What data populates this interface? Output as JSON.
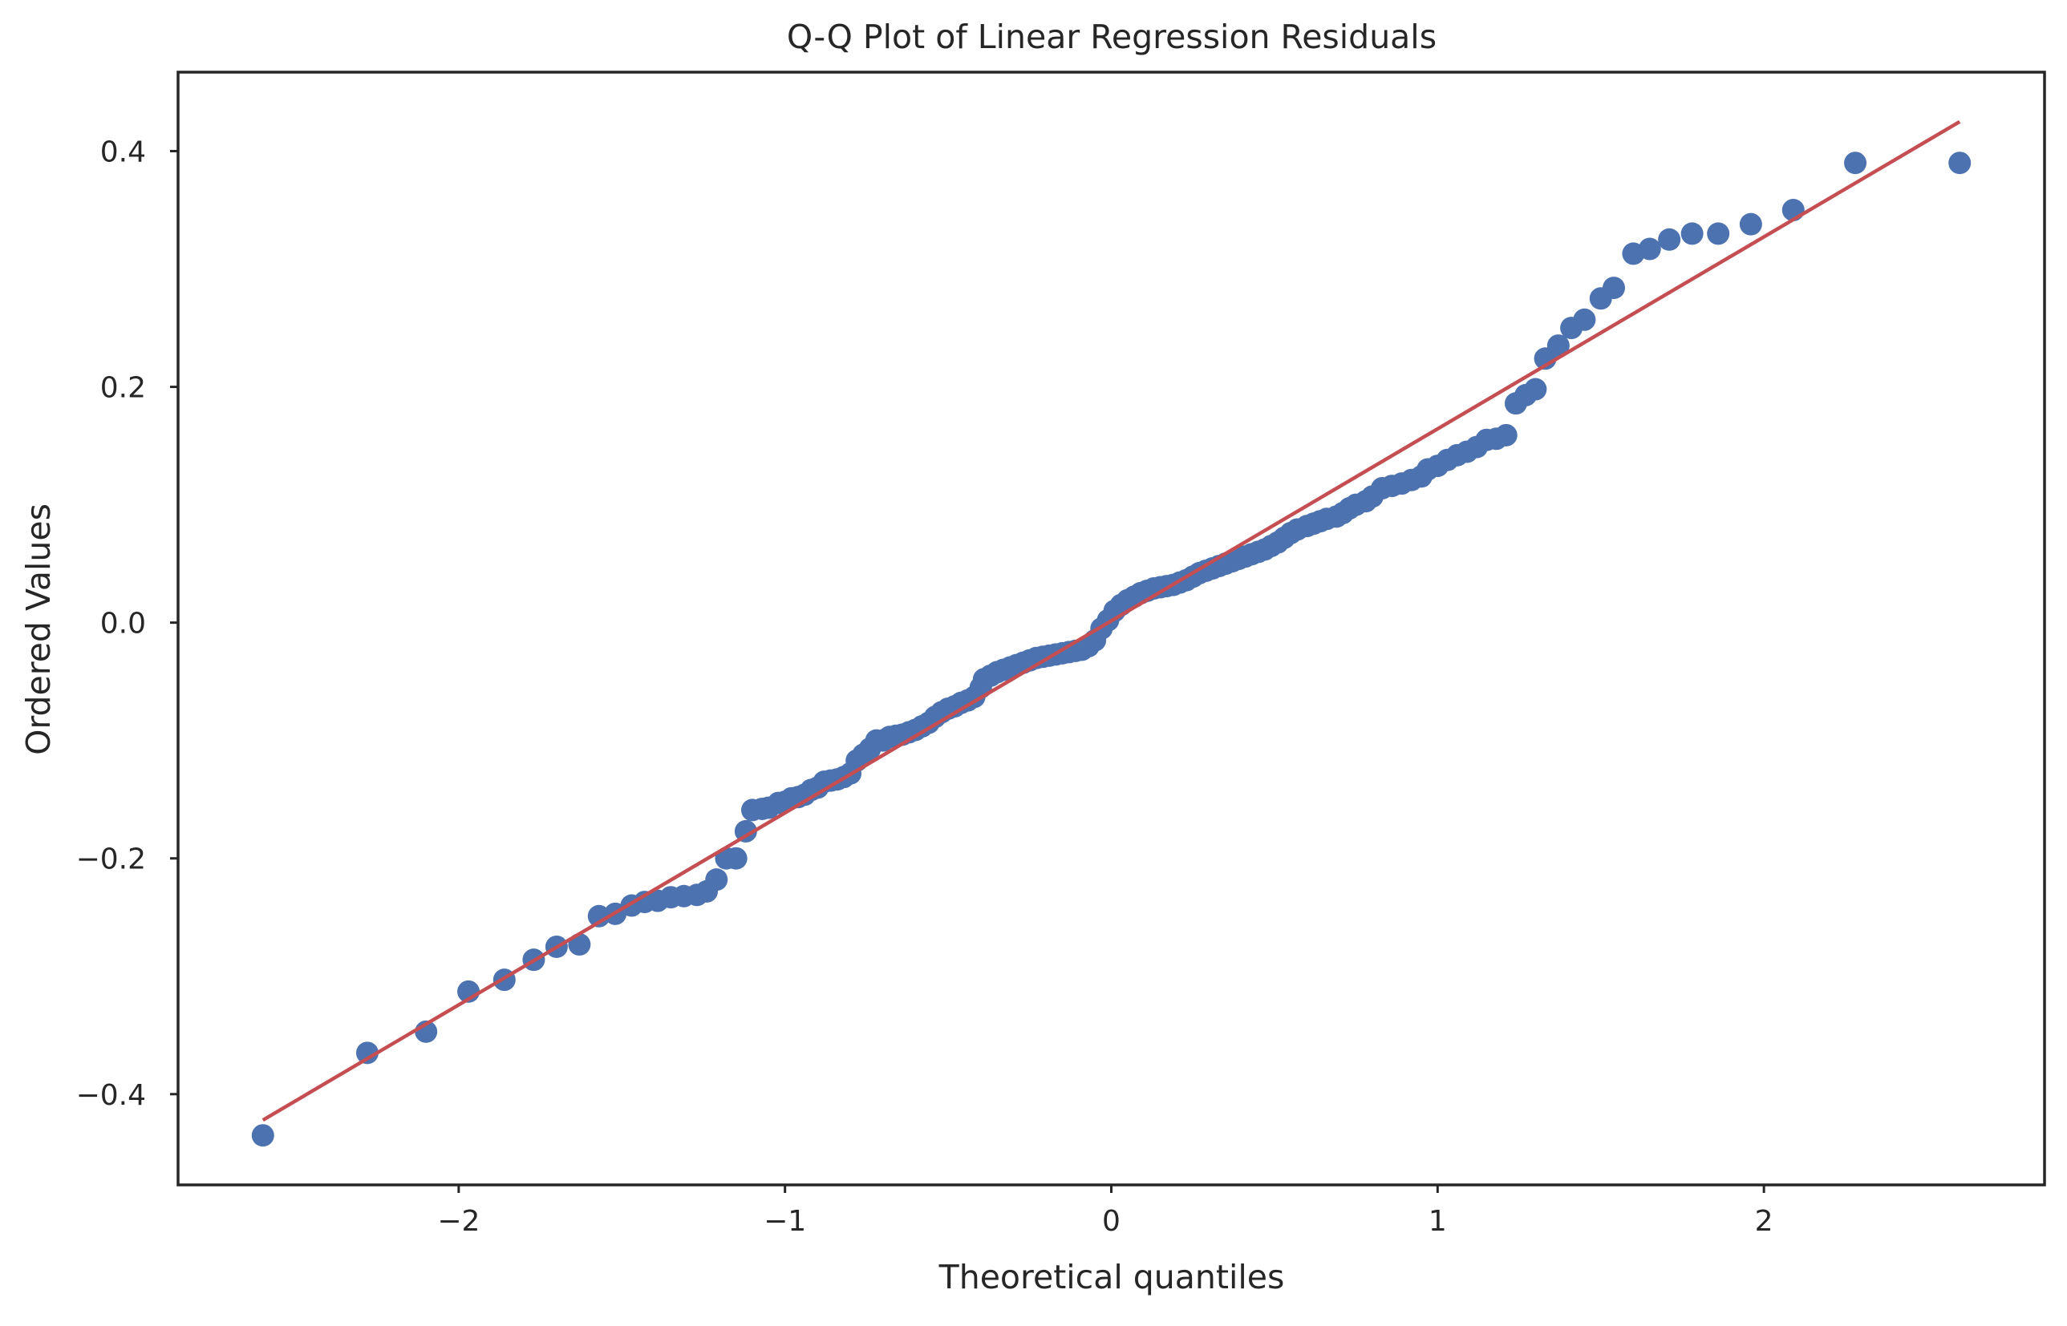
{
  "chart_data": {
    "type": "scatter",
    "title": "Q-Q Plot of Linear Regression Residuals",
    "xlabel": "Theoretical quantiles",
    "ylabel": "Ordered Values",
    "xlim": [
      -2.86,
      2.86
    ],
    "ylim": [
      -0.477,
      0.467
    ],
    "xticks": [
      {
        "value": -2,
        "label": "−2"
      },
      {
        "value": -1,
        "label": "−1"
      },
      {
        "value": 0,
        "label": "0"
      },
      {
        "value": 1,
        "label": "1"
      },
      {
        "value": 2,
        "label": "2"
      }
    ],
    "yticks": [
      {
        "value": -0.4,
        "label": "−0.4"
      },
      {
        "value": -0.2,
        "label": "−0.2"
      },
      {
        "value": 0.0,
        "label": "0.0"
      },
      {
        "value": 0.2,
        "label": "0.2"
      },
      {
        "value": 0.4,
        "label": "0.4"
      }
    ],
    "grid": false,
    "colors": {
      "points": "#4c72b0",
      "fit_line": "#c44e52",
      "axes": "#262626",
      "text": "#262626"
    },
    "fit_line": {
      "x": [
        -2.6,
        2.6
      ],
      "y": [
        -0.422,
        0.425
      ]
    },
    "points": [
      [
        -2.6,
        -0.435
      ],
      [
        -2.28,
        -0.365
      ],
      [
        -2.1,
        -0.347
      ],
      [
        -1.97,
        -0.313
      ],
      [
        -1.86,
        -0.303
      ],
      [
        -1.77,
        -0.286
      ],
      [
        -1.7,
        -0.275
      ],
      [
        -1.63,
        -0.273
      ],
      [
        -1.57,
        -0.249
      ],
      [
        -1.52,
        -0.247
      ],
      [
        -1.47,
        -0.24
      ],
      [
        -1.43,
        -0.237
      ],
      [
        -1.39,
        -0.236
      ],
      [
        -1.35,
        -0.233
      ],
      [
        -1.31,
        -0.232
      ],
      [
        -1.27,
        -0.231
      ],
      [
        -1.24,
        -0.228
      ],
      [
        -1.21,
        -0.218
      ],
      [
        -1.18,
        -0.2
      ],
      [
        -1.15,
        -0.2
      ],
      [
        -1.12,
        -0.177
      ],
      [
        -1.1,
        -0.159
      ],
      [
        -1.07,
        -0.158
      ],
      [
        -1.05,
        -0.157
      ],
      [
        -1.02,
        -0.153
      ],
      [
        -1.0,
        -0.152
      ],
      [
        -0.98,
        -0.149
      ],
      [
        -0.96,
        -0.148
      ],
      [
        -0.94,
        -0.146
      ],
      [
        -0.92,
        -0.142
      ],
      [
        -0.9,
        -0.14
      ],
      [
        -0.88,
        -0.135
      ],
      [
        -0.86,
        -0.134
      ],
      [
        -0.84,
        -0.133
      ],
      [
        -0.82,
        -0.131
      ],
      [
        -0.8,
        -0.128
      ],
      [
        -0.78,
        -0.117
      ],
      [
        -0.76,
        -0.112
      ],
      [
        -0.74,
        -0.107
      ],
      [
        -0.72,
        -0.1
      ],
      [
        -0.7,
        -0.1
      ],
      [
        -0.68,
        -0.097
      ],
      [
        -0.66,
        -0.096
      ],
      [
        -0.64,
        -0.095
      ],
      [
        -0.62,
        -0.093
      ],
      [
        -0.6,
        -0.091
      ],
      [
        -0.58,
        -0.088
      ],
      [
        -0.56,
        -0.085
      ],
      [
        -0.54,
        -0.08
      ],
      [
        -0.52,
        -0.076
      ],
      [
        -0.5,
        -0.073
      ],
      [
        -0.48,
        -0.071
      ],
      [
        -0.46,
        -0.068
      ],
      [
        -0.44,
        -0.066
      ],
      [
        -0.42,
        -0.063
      ],
      [
        -0.4,
        -0.055
      ],
      [
        -0.39,
        -0.048
      ],
      [
        -0.37,
        -0.045
      ],
      [
        -0.35,
        -0.042
      ],
      [
        -0.33,
        -0.04
      ],
      [
        -0.31,
        -0.038
      ],
      [
        -0.29,
        -0.036
      ],
      [
        -0.27,
        -0.034
      ],
      [
        -0.25,
        -0.032
      ],
      [
        -0.23,
        -0.03
      ],
      [
        -0.21,
        -0.029
      ],
      [
        -0.19,
        -0.028
      ],
      [
        -0.17,
        -0.027
      ],
      [
        -0.15,
        -0.026
      ],
      [
        -0.13,
        -0.025
      ],
      [
        -0.11,
        -0.024
      ],
      [
        -0.09,
        -0.023
      ],
      [
        -0.07,
        -0.02
      ],
      [
        -0.05,
        -0.015
      ],
      [
        -0.03,
        -0.005
      ],
      [
        -0.01,
        0.002
      ],
      [
        0.01,
        0.01
      ],
      [
        0.03,
        0.015
      ],
      [
        0.05,
        0.019
      ],
      [
        0.07,
        0.022
      ],
      [
        0.09,
        0.025
      ],
      [
        0.11,
        0.027
      ],
      [
        0.13,
        0.029
      ],
      [
        0.15,
        0.03
      ],
      [
        0.17,
        0.031
      ],
      [
        0.19,
        0.032
      ],
      [
        0.21,
        0.034
      ],
      [
        0.23,
        0.036
      ],
      [
        0.25,
        0.039
      ],
      [
        0.27,
        0.042
      ],
      [
        0.29,
        0.044
      ],
      [
        0.31,
        0.046
      ],
      [
        0.33,
        0.048
      ],
      [
        0.35,
        0.05
      ],
      [
        0.37,
        0.052
      ],
      [
        0.39,
        0.054
      ],
      [
        0.41,
        0.056
      ],
      [
        0.43,
        0.058
      ],
      [
        0.45,
        0.06
      ],
      [
        0.47,
        0.062
      ],
      [
        0.49,
        0.065
      ],
      [
        0.51,
        0.068
      ],
      [
        0.53,
        0.072
      ],
      [
        0.55,
        0.076
      ],
      [
        0.57,
        0.079
      ],
      [
        0.6,
        0.082
      ],
      [
        0.62,
        0.084
      ],
      [
        0.64,
        0.086
      ],
      [
        0.66,
        0.088
      ],
      [
        0.69,
        0.09
      ],
      [
        0.71,
        0.093
      ],
      [
        0.73,
        0.097
      ],
      [
        0.75,
        0.1
      ],
      [
        0.78,
        0.103
      ],
      [
        0.8,
        0.107
      ],
      [
        0.83,
        0.114
      ],
      [
        0.86,
        0.116
      ],
      [
        0.89,
        0.118
      ],
      [
        0.92,
        0.121
      ],
      [
        0.95,
        0.124
      ],
      [
        0.97,
        0.13
      ],
      [
        1.0,
        0.133
      ],
      [
        1.03,
        0.138
      ],
      [
        1.06,
        0.142
      ],
      [
        1.09,
        0.145
      ],
      [
        1.12,
        0.149
      ],
      [
        1.15,
        0.155
      ],
      [
        1.18,
        0.156
      ],
      [
        1.21,
        0.159
      ],
      [
        1.24,
        0.186
      ],
      [
        1.27,
        0.193
      ],
      [
        1.3,
        0.198
      ],
      [
        1.33,
        0.224
      ],
      [
        1.37,
        0.235
      ],
      [
        1.41,
        0.25
      ],
      [
        1.45,
        0.257
      ],
      [
        1.5,
        0.275
      ],
      [
        1.54,
        0.284
      ],
      [
        1.6,
        0.313
      ],
      [
        1.65,
        0.317
      ],
      [
        1.71,
        0.325
      ],
      [
        1.78,
        0.33
      ],
      [
        1.86,
        0.33
      ],
      [
        1.96,
        0.338
      ],
      [
        2.09,
        0.35
      ],
      [
        2.28,
        0.39
      ],
      [
        2.6,
        0.39
      ]
    ]
  }
}
